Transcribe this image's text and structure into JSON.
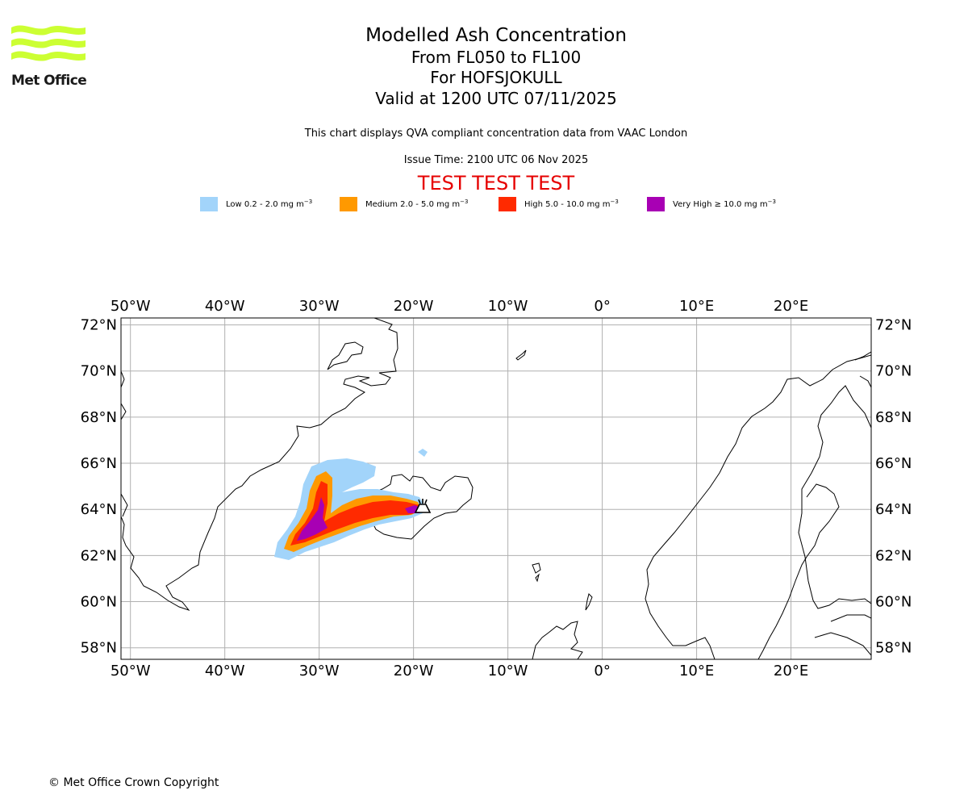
{
  "logo": {
    "text": "Met Office",
    "wave_color": "#ccff33",
    "icon": "met-office-waves-icon"
  },
  "header": {
    "title": "Modelled Ash Concentration",
    "levels": "From FL050 to FL100",
    "volcano": "For HOFSJOKULL",
    "valid": "Valid at 1200 UTC 07/11/2025",
    "description": "This chart displays QVA compliant concentration data from VAAC London",
    "issue": "Issue Time: 2100 UTC 06 Nov 2025",
    "test_banner": "TEST TEST TEST"
  },
  "legend": [
    {
      "label": "Low 0.2 - 2.0 mg m",
      "color": "#a2d4fa"
    },
    {
      "label": "Medium 2.0 - 5.0 mg m",
      "color": "#ff9900"
    },
    {
      "label": "High 5.0 - 10.0 mg m",
      "color": "#ff2a00"
    },
    {
      "label": "Very High ≥ 10.0 mg m",
      "color": "#a800b4"
    }
  ],
  "legend_unit_exponent": "−3",
  "map": {
    "projection": "equirectangular",
    "lon_range": [
      -51,
      28.5
    ],
    "lat_range": [
      57.5,
      72.3
    ],
    "lon_ticks": [
      {
        "value": -50,
        "label": "50°W"
      },
      {
        "value": -40,
        "label": "40°W"
      },
      {
        "value": -30,
        "label": "30°W"
      },
      {
        "value": -20,
        "label": "20°W"
      },
      {
        "value": -10,
        "label": "10°W"
      },
      {
        "value": 0,
        "label": "0°"
      },
      {
        "value": 10,
        "label": "10°E"
      },
      {
        "value": 20,
        "label": "20°E"
      }
    ],
    "lat_ticks": [
      {
        "value": 72,
        "label": "72°N"
      },
      {
        "value": 70,
        "label": "70°N"
      },
      {
        "value": 68,
        "label": "68°N"
      },
      {
        "value": 66,
        "label": "66°N"
      },
      {
        "value": 64,
        "label": "64°N"
      },
      {
        "value": 62,
        "label": "62°N"
      },
      {
        "value": 60,
        "label": "60°N"
      },
      {
        "value": 58,
        "label": "58°N"
      }
    ],
    "grid": true,
    "volcano_location": {
      "lon": -18.8,
      "lat": 64.8,
      "icon": "volcano-icon"
    }
  },
  "footer": {
    "copyright": "© Met Office Crown Copyright"
  }
}
